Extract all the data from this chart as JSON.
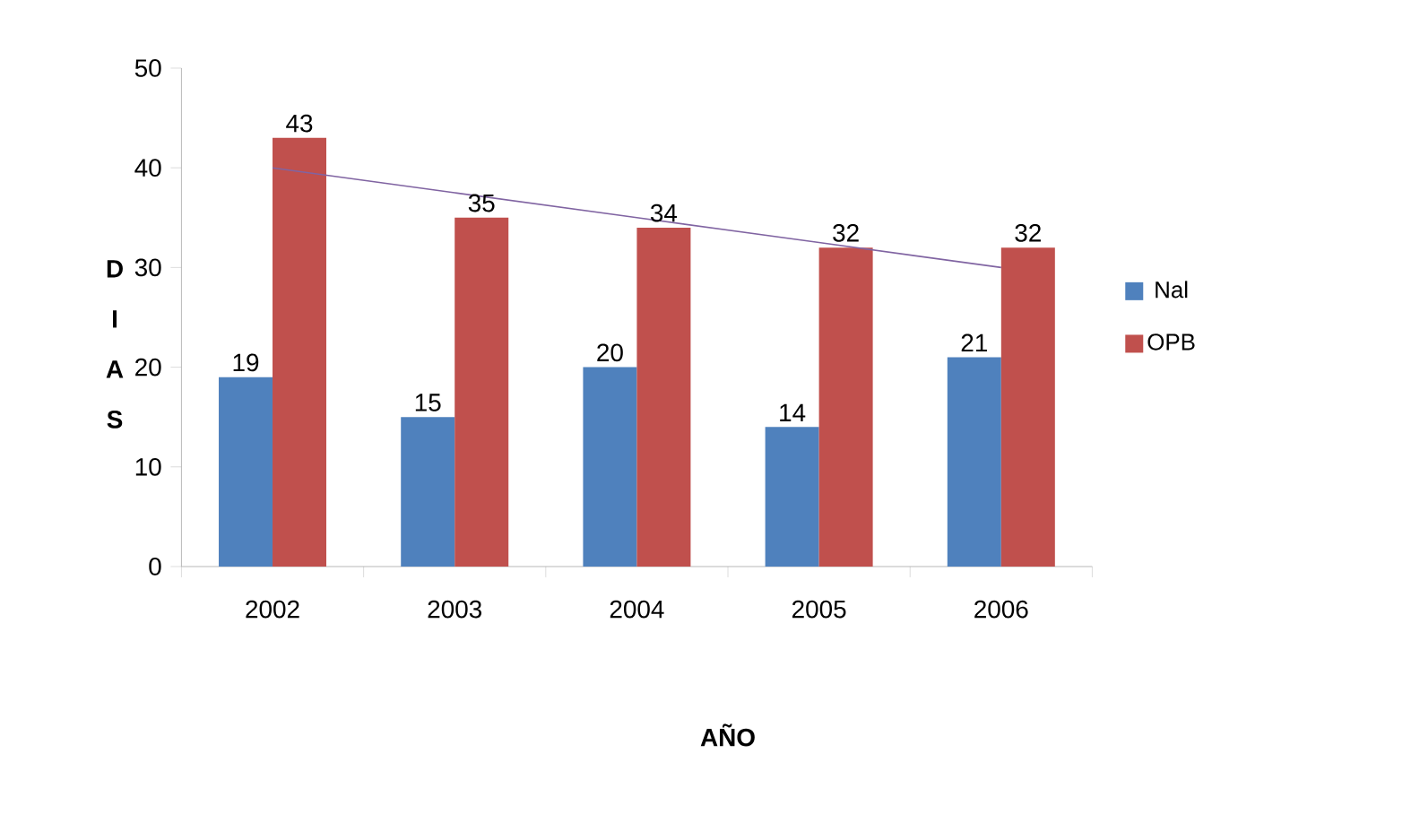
{
  "chart_data": {
    "type": "bar",
    "xlabel": "AÑO",
    "ylabel": "D I A S",
    "categories": [
      "2002",
      "2003",
      "2004",
      "2005",
      "2006"
    ],
    "series": [
      {
        "name": "Nal",
        "color": "#4f81bd",
        "values": [
          19,
          15,
          20,
          14,
          21
        ],
        "value_labels": [
          "19",
          "15",
          "20",
          "14",
          "21"
        ]
      },
      {
        "name": "OPB",
        "color": "#c0504d",
        "values": [
          43,
          35,
          34,
          32,
          32
        ],
        "value_labels": [
          "43",
          "35",
          "34",
          "32",
          "32"
        ]
      },
      {
        "type": "line",
        "color": "#8064a2",
        "values": [
          40,
          37.5,
          35,
          32.5,
          30
        ]
      }
    ],
    "ylim": [
      0,
      50
    ],
    "yticks": [
      0,
      10,
      20,
      30,
      40,
      50
    ],
    "legend": "right"
  }
}
